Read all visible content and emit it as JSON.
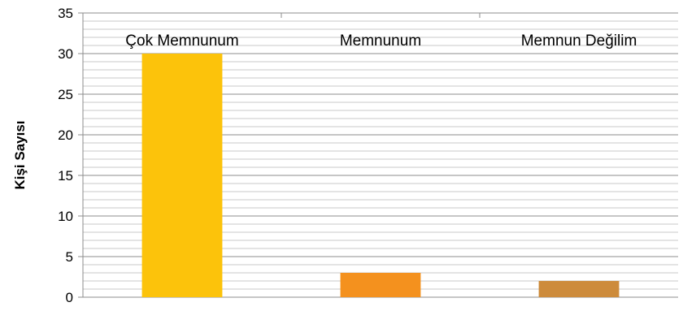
{
  "chart_data": {
    "type": "bar",
    "categories": [
      "Çok Memnunum",
      "Memnunum",
      "Memnun Değilim"
    ],
    "values": [
      30,
      3,
      2
    ],
    "colors": [
      "#FCC30B",
      "#F4911E",
      "#CD8B3B"
    ],
    "ylabel": "Kişi Sayısı",
    "xlabel": "",
    "title": "",
    "ylim": [
      0,
      35
    ],
    "yticks": [
      0,
      5,
      10,
      15,
      20,
      25,
      30,
      35
    ],
    "minor_gridline_step": 1,
    "grid": true,
    "category_labels_position": "top",
    "legend": "none"
  }
}
